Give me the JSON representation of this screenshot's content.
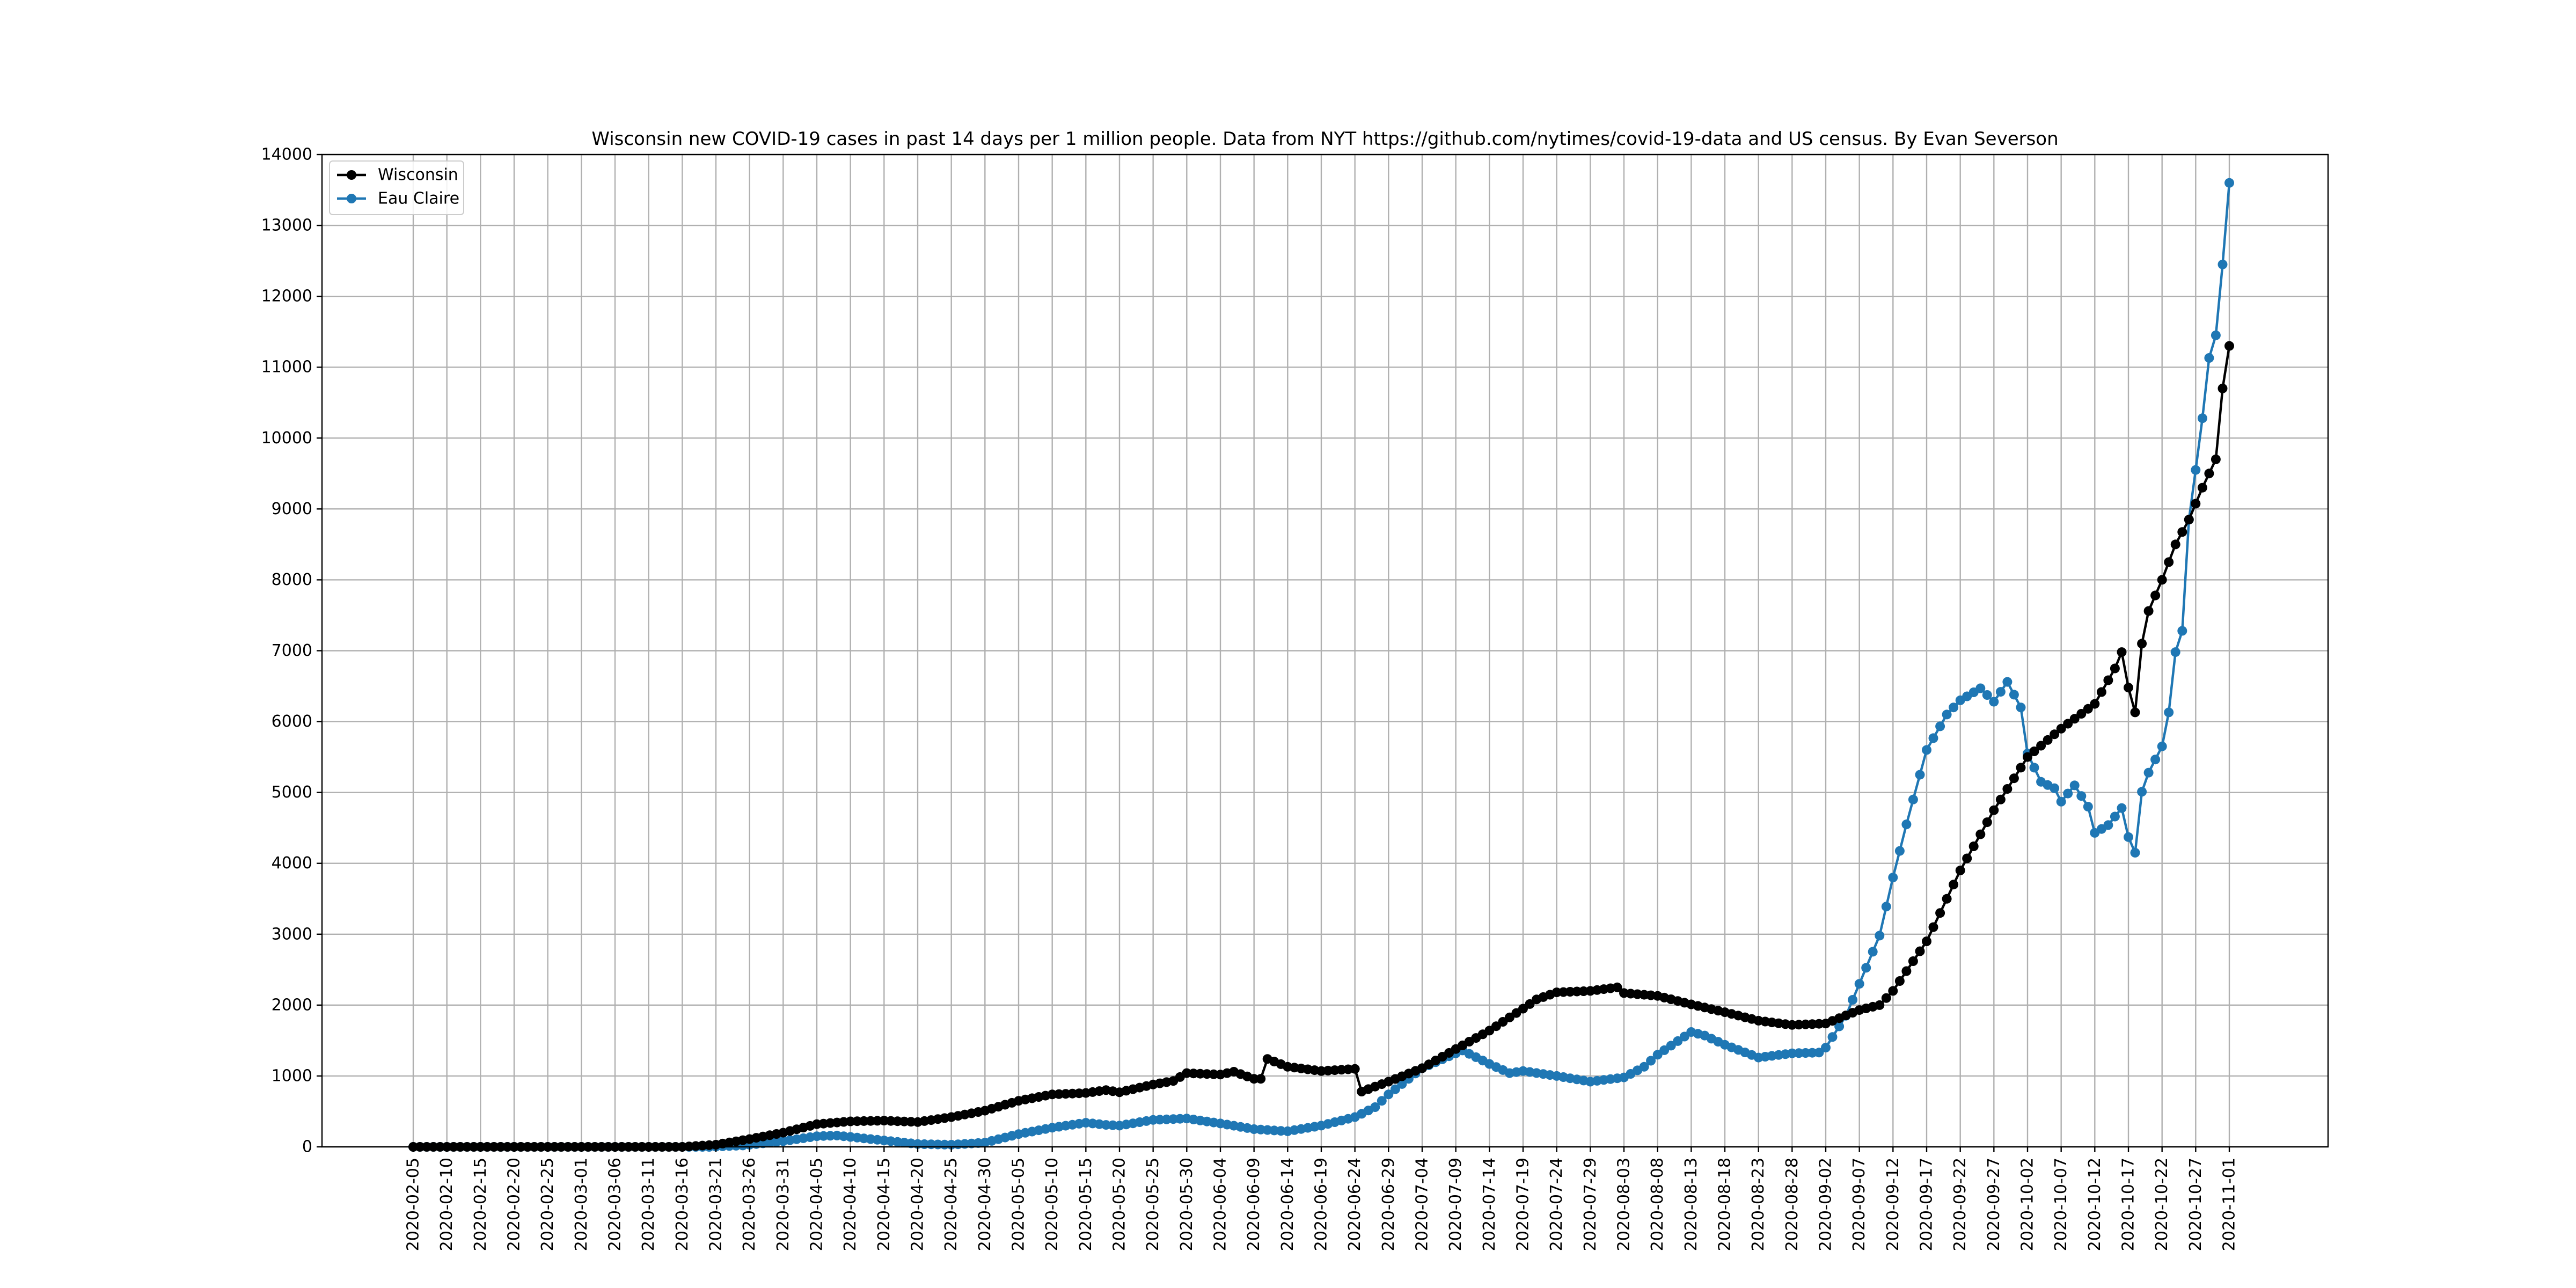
{
  "chart_data": {
    "type": "line",
    "title": "Wisconsin new COVID-19 cases in past 14 days per 1 million people. Data from NYT https://github.com/nytimes/covid-19-data and US census. By Evan Severson",
    "xlabel": "",
    "ylabel": "",
    "x_range": [
      "2020-02-05",
      "2020-11-01"
    ],
    "ylim": [
      0,
      14000
    ],
    "y_ticks": [
      0,
      1000,
      2000,
      3000,
      4000,
      5000,
      6000,
      7000,
      8000,
      9000,
      10000,
      11000,
      12000,
      13000,
      14000
    ],
    "x_ticks": [
      "2020-02-05",
      "2020-02-10",
      "2020-02-15",
      "2020-02-20",
      "2020-02-25",
      "2020-03-01",
      "2020-03-06",
      "2020-03-11",
      "2020-03-16",
      "2020-03-21",
      "2020-03-26",
      "2020-03-31",
      "2020-04-05",
      "2020-04-10",
      "2020-04-15",
      "2020-04-20",
      "2020-04-25",
      "2020-04-30",
      "2020-05-05",
      "2020-05-10",
      "2020-05-15",
      "2020-05-20",
      "2020-05-25",
      "2020-05-30",
      "2020-06-04",
      "2020-06-09",
      "2020-06-14",
      "2020-06-19",
      "2020-06-24",
      "2020-06-29",
      "2020-07-04",
      "2020-07-09",
      "2020-07-14",
      "2020-07-19",
      "2020-07-24",
      "2020-07-29",
      "2020-08-03",
      "2020-08-08",
      "2020-08-13",
      "2020-08-18",
      "2020-08-23",
      "2020-08-28",
      "2020-09-02",
      "2020-09-07",
      "2020-09-12",
      "2020-09-17",
      "2020-09-22",
      "2020-09-27",
      "2020-10-02",
      "2020-10-07",
      "2020-10-12",
      "2020-10-17",
      "2020-10-22",
      "2020-10-27",
      "2020-11-01"
    ],
    "grid": true,
    "legend_position": "top-left",
    "series": [
      {
        "name": "Wisconsin",
        "color": "#000000",
        "points": [
          [
            "2020-02-05",
            0
          ],
          [
            "2020-03-16",
            0
          ],
          [
            "2020-03-21",
            30
          ],
          [
            "2020-03-26",
            110
          ],
          [
            "2020-03-31",
            200
          ],
          [
            "2020-04-05",
            320
          ],
          [
            "2020-04-10",
            360
          ],
          [
            "2020-04-15",
            370
          ],
          [
            "2020-04-20",
            350
          ],
          [
            "2020-04-25",
            420
          ],
          [
            "2020-04-30",
            510
          ],
          [
            "2020-05-05",
            650
          ],
          [
            "2020-05-10",
            740
          ],
          [
            "2020-05-15",
            760
          ],
          [
            "2020-05-18",
            800
          ],
          [
            "2020-05-20",
            770
          ],
          [
            "2020-05-25",
            880
          ],
          [
            "2020-05-28",
            930
          ],
          [
            "2020-05-30",
            1040
          ],
          [
            "2020-06-04",
            1020
          ],
          [
            "2020-06-06",
            1060
          ],
          [
            "2020-06-09",
            960
          ],
          [
            "2020-06-10",
            960
          ],
          [
            "2020-06-11",
            1240
          ],
          [
            "2020-06-14",
            1130
          ],
          [
            "2020-06-19",
            1070
          ],
          [
            "2020-06-24",
            1100
          ],
          [
            "2020-06-25",
            780
          ],
          [
            "2020-06-29",
            920
          ],
          [
            "2020-07-04",
            1110
          ],
          [
            "2020-07-09",
            1380
          ],
          [
            "2020-07-14",
            1640
          ],
          [
            "2020-07-19",
            1950
          ],
          [
            "2020-07-21",
            2080
          ],
          [
            "2020-07-24",
            2180
          ],
          [
            "2020-07-29",
            2200
          ],
          [
            "2020-08-02",
            2250
          ],
          [
            "2020-08-03",
            2170
          ],
          [
            "2020-08-08",
            2130
          ],
          [
            "2020-08-13",
            2010
          ],
          [
            "2020-08-18",
            1900
          ],
          [
            "2020-08-23",
            1780
          ],
          [
            "2020-08-28",
            1720
          ],
          [
            "2020-09-02",
            1740
          ],
          [
            "2020-09-07",
            1930
          ],
          [
            "2020-09-10",
            2000
          ],
          [
            "2020-09-12",
            2200
          ],
          [
            "2020-09-17",
            2900
          ],
          [
            "2020-09-22",
            3900
          ],
          [
            "2020-09-27",
            4750
          ],
          [
            "2020-10-02",
            5500
          ],
          [
            "2020-10-07",
            5900
          ],
          [
            "2020-10-12",
            6250
          ],
          [
            "2020-10-15",
            6750
          ],
          [
            "2020-10-16",
            6980
          ],
          [
            "2020-10-17",
            6480
          ],
          [
            "2020-10-18",
            6130
          ],
          [
            "2020-10-19",
            7100
          ],
          [
            "2020-10-20",
            7560
          ],
          [
            "2020-10-22",
            8000
          ],
          [
            "2020-10-24",
            8500
          ],
          [
            "2020-10-26",
            8850
          ],
          [
            "2020-10-28",
            9300
          ],
          [
            "2020-10-30",
            9700
          ],
          [
            "2020-10-31",
            10700
          ],
          [
            "2020-11-01",
            11300
          ]
        ]
      },
      {
        "name": "Eau Claire",
        "color": "#1f77b4",
        "points": [
          [
            "2020-02-05",
            0
          ],
          [
            "2020-03-20",
            0
          ],
          [
            "2020-03-25",
            20
          ],
          [
            "2020-03-31",
            80
          ],
          [
            "2020-04-05",
            150
          ],
          [
            "2020-04-08",
            160
          ],
          [
            "2020-04-15",
            90
          ],
          [
            "2020-04-20",
            40
          ],
          [
            "2020-04-25",
            30
          ],
          [
            "2020-04-30",
            60
          ],
          [
            "2020-05-05",
            180
          ],
          [
            "2020-05-10",
            270
          ],
          [
            "2020-05-15",
            340
          ],
          [
            "2020-05-18",
            310
          ],
          [
            "2020-05-20",
            300
          ],
          [
            "2020-05-25",
            380
          ],
          [
            "2020-05-30",
            400
          ],
          [
            "2020-06-04",
            330
          ],
          [
            "2020-06-09",
            250
          ],
          [
            "2020-06-14",
            220
          ],
          [
            "2020-06-19",
            300
          ],
          [
            "2020-06-24",
            420
          ],
          [
            "2020-06-27",
            560
          ],
          [
            "2020-06-29",
            740
          ],
          [
            "2020-07-02",
            960
          ],
          [
            "2020-07-04",
            1110
          ],
          [
            "2020-07-09",
            1320
          ],
          [
            "2020-07-10",
            1360
          ],
          [
            "2020-07-14",
            1170
          ],
          [
            "2020-07-17",
            1040
          ],
          [
            "2020-07-19",
            1070
          ],
          [
            "2020-07-24",
            1000
          ],
          [
            "2020-07-29",
            920
          ],
          [
            "2020-08-03",
            980
          ],
          [
            "2020-08-06",
            1130
          ],
          [
            "2020-08-08",
            1300
          ],
          [
            "2020-08-13",
            1620
          ],
          [
            "2020-08-15",
            1570
          ],
          [
            "2020-08-18",
            1440
          ],
          [
            "2020-08-23",
            1260
          ],
          [
            "2020-08-28",
            1320
          ],
          [
            "2020-09-01",
            1330
          ],
          [
            "2020-09-02",
            1400
          ],
          [
            "2020-09-05",
            1850
          ],
          [
            "2020-09-07",
            2300
          ],
          [
            "2020-09-10",
            2980
          ],
          [
            "2020-09-12",
            3800
          ],
          [
            "2020-09-14",
            4550
          ],
          [
            "2020-09-17",
            5600
          ],
          [
            "2020-09-20",
            6100
          ],
          [
            "2020-09-22",
            6300
          ],
          [
            "2020-09-25",
            6470
          ],
          [
            "2020-09-27",
            6280
          ],
          [
            "2020-09-29",
            6560
          ],
          [
            "2020-10-01",
            6200
          ],
          [
            "2020-10-02",
            5550
          ],
          [
            "2020-10-04",
            5150
          ],
          [
            "2020-10-06",
            5060
          ],
          [
            "2020-10-07",
            4870
          ],
          [
            "2020-10-09",
            5100
          ],
          [
            "2020-10-11",
            4800
          ],
          [
            "2020-10-12",
            4430
          ],
          [
            "2020-10-14",
            4540
          ],
          [
            "2020-10-16",
            4780
          ],
          [
            "2020-10-17",
            4370
          ],
          [
            "2020-10-18",
            4150
          ],
          [
            "2020-10-19",
            5010
          ],
          [
            "2020-10-20",
            5280
          ],
          [
            "2020-10-22",
            5650
          ],
          [
            "2020-10-23",
            6130
          ],
          [
            "2020-10-24",
            6980
          ],
          [
            "2020-10-25",
            7280
          ],
          [
            "2020-10-26",
            8850
          ],
          [
            "2020-10-27",
            9550
          ],
          [
            "2020-10-28",
            10280
          ],
          [
            "2020-10-29",
            11130
          ],
          [
            "2020-10-30",
            11450
          ],
          [
            "2020-10-31",
            12450
          ],
          [
            "2020-11-01",
            13600
          ]
        ]
      }
    ]
  }
}
